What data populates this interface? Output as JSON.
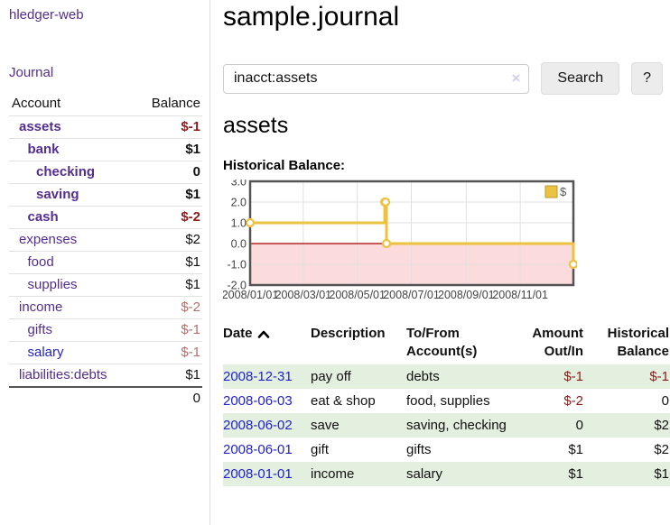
{
  "colors": {
    "link_purple": "#552d90",
    "link_blue": "#2222cc",
    "negative_dark": "#8b1c1c",
    "negative_soft": "#b36d6d",
    "row_stripe_green": "#e3efdf",
    "series_yellow": "#EDC240",
    "negative_region_pink": "#fbdbdb",
    "zero_line_red": "#a40000",
    "chart_border_gray": "#545454"
  },
  "sidebar": {
    "brand": "hledger-web",
    "journal_link": "Journal",
    "accounts_table": {
      "headers": {
        "account": "Account",
        "balance": "Balance"
      },
      "rows": [
        {
          "account": "assets",
          "depth": 0,
          "bold": true,
          "balance": "$-1",
          "negative": "dark",
          "link": "purple"
        },
        {
          "account": "bank",
          "depth": 1,
          "bold": true,
          "balance": "$1",
          "negative": "",
          "link": "purple"
        },
        {
          "account": "checking",
          "depth": 2,
          "bold": true,
          "balance": "0",
          "negative": "",
          "link": "purple"
        },
        {
          "account": "saving",
          "depth": 2,
          "bold": true,
          "balance": "$1",
          "negative": "",
          "link": "purple"
        },
        {
          "account": "cash",
          "depth": 1,
          "bold": true,
          "balance": "$-2",
          "negative": "dark",
          "link": "purple"
        },
        {
          "account": "expenses",
          "depth": 0,
          "bold": false,
          "balance": "$2",
          "negative": "",
          "link": "purple"
        },
        {
          "account": "food",
          "depth": 1,
          "bold": false,
          "balance": "$1",
          "negative": "",
          "link": "purple"
        },
        {
          "account": "supplies",
          "depth": 1,
          "bold": false,
          "balance": "$1",
          "negative": "",
          "link": "purple"
        },
        {
          "account": "income",
          "depth": 0,
          "bold": false,
          "balance": "$-2",
          "negative": "soft",
          "link": "purple"
        },
        {
          "account": "gifts",
          "depth": 1,
          "bold": false,
          "balance": "$-1",
          "negative": "soft",
          "link": "purple"
        },
        {
          "account": "salary",
          "depth": 1,
          "bold": false,
          "balance": "$-1",
          "negative": "soft",
          "link": "blue"
        },
        {
          "account": "liabilities:debts",
          "depth": 0,
          "bold": false,
          "balance": "$1",
          "negative": "",
          "link": "purple"
        }
      ],
      "total": "0"
    }
  },
  "header": {
    "title": "sample.journal"
  },
  "search": {
    "value": "inacct:assets",
    "clear_icon": "×",
    "button_label": "Search",
    "help_label": "?"
  },
  "account_page": {
    "heading": "assets",
    "chart_label": "Historical Balance:"
  },
  "chart_data": {
    "type": "line",
    "title": "Historical Balance",
    "x_type": "date",
    "xlim": [
      "2008-01-01",
      "2008-12-31"
    ],
    "ylim": [
      -2,
      3
    ],
    "y_ticks": [
      "3.0",
      "2.0",
      "1.0",
      "0.0",
      "-1.0",
      "-2.0"
    ],
    "x_ticks": [
      "2008/01/01",
      "2008/03/01",
      "2008/05/01",
      "2008/07/01",
      "2008/09/01",
      "2008/11/01"
    ],
    "grid": true,
    "legend_position": "top-right",
    "series": [
      {
        "name": "$",
        "step": true,
        "color": "#EDC240",
        "points": [
          [
            "2008-01-01",
            1
          ],
          [
            "2008-06-01",
            2
          ],
          [
            "2008-06-02",
            2
          ],
          [
            "2008-06-03",
            0
          ],
          [
            "2008-12-31",
            -1
          ]
        ]
      }
    ]
  },
  "transactions": {
    "headers": {
      "date": "Date",
      "description": "Description",
      "account": "To/From Account(s)",
      "amount": "Amount Out/In",
      "balance": "Historical Balance"
    },
    "rows": [
      {
        "date": "2008-12-31",
        "description": "pay off",
        "account": "debts",
        "amount": "$-1",
        "balance": "$-1",
        "amount_negative": true,
        "balance_negative": true
      },
      {
        "date": "2008-06-03",
        "description": "eat & shop",
        "account": "food, supplies",
        "amount": "$-2",
        "balance": "0",
        "amount_negative": true,
        "balance_negative": false
      },
      {
        "date": "2008-06-02",
        "description": "save",
        "account": "saving, checking",
        "amount": "0",
        "balance": "$2",
        "amount_negative": false,
        "balance_negative": false
      },
      {
        "date": "2008-06-01",
        "description": "gift",
        "account": "gifts",
        "amount": "$1",
        "balance": "$2",
        "amount_negative": false,
        "balance_negative": false
      },
      {
        "date": "2008-01-01",
        "description": "income",
        "account": "salary",
        "amount": "$1",
        "balance": "$1",
        "amount_negative": false,
        "balance_negative": false
      }
    ]
  }
}
